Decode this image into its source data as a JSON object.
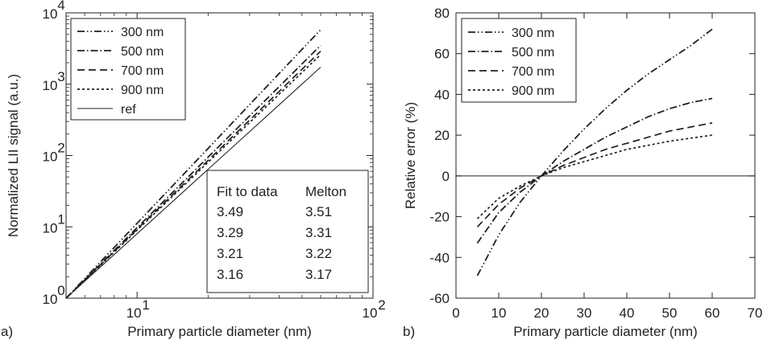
{
  "chart_data": [
    {
      "panel_label": "a)",
      "type": "line",
      "xscale": "log",
      "yscale": "log",
      "xlabel": "Primary particle diameter (nm)",
      "ylabel": "Normalized LII signal (a.u.)",
      "xlim": [
        5,
        100
      ],
      "ylim": [
        1,
        10000
      ],
      "xticks": [
        {
          "base": "10",
          "exp": "1",
          "value": 10
        },
        {
          "base": "10",
          "exp": "2",
          "value": 100
        }
      ],
      "yticks": [
        {
          "base": "10",
          "exp": "0",
          "value": 1
        },
        {
          "base": "10",
          "exp": "1",
          "value": 10
        },
        {
          "base": "10",
          "exp": "2",
          "value": 100
        },
        {
          "base": "10",
          "exp": "3",
          "value": 1000
        },
        {
          "base": "10",
          "exp": "4",
          "value": 10000
        }
      ],
      "legend_position": "top-left",
      "series": [
        {
          "name": "300 nm",
          "style": "dash-dot-dot",
          "x": [
            5,
            60
          ],
          "y": [
            1,
            5800
          ]
        },
        {
          "name": "500 nm",
          "style": "dash-dot",
          "x": [
            5,
            60
          ],
          "y": [
            1,
            3500
          ]
        },
        {
          "name": "700 nm",
          "style": "dash",
          "x": [
            5,
            60
          ],
          "y": [
            1,
            2900
          ]
        },
        {
          "name": "900 nm",
          "style": "dot",
          "x": [
            5,
            60
          ],
          "y": [
            1,
            2600
          ]
        },
        {
          "name": "ref",
          "style": "solid",
          "x": [
            5,
            60
          ],
          "y": [
            1,
            1730
          ]
        }
      ],
      "table": {
        "headers": [
          "Fit to data",
          "Melton"
        ],
        "rows": [
          [
            "3.49",
            "3.51"
          ],
          [
            "3.29",
            "3.31"
          ],
          [
            "3.21",
            "3.22"
          ],
          [
            "3.16",
            "3.17"
          ]
        ]
      }
    },
    {
      "panel_label": "b)",
      "type": "line",
      "xlabel": "Primary particle diameter (nm)",
      "ylabel": "Relative error (%)",
      "xlim": [
        0,
        70
      ],
      "ylim": [
        -60,
        80
      ],
      "xticks": [
        "0",
        "10",
        "20",
        "30",
        "40",
        "50",
        "60",
        "70"
      ],
      "yticks": [
        "-60",
        "-40",
        "-20",
        "0",
        "20",
        "40",
        "60",
        "80"
      ],
      "legend_position": "top-left",
      "reference_line": 0,
      "series": [
        {
          "name": "300 nm",
          "style": "dash-dot-dot",
          "x": [
            5,
            10,
            15,
            20,
            25,
            30,
            35,
            40,
            45,
            50,
            55,
            60
          ],
          "y": [
            -49,
            -29,
            -13,
            0,
            12,
            23,
            33,
            42,
            50,
            57,
            64,
            72
          ]
        },
        {
          "name": "500 nm",
          "style": "dash-dot",
          "x": [
            5,
            10,
            15,
            20,
            25,
            30,
            35,
            40,
            45,
            50,
            55,
            60
          ],
          "y": [
            -33,
            -18,
            -8,
            0,
            7,
            13,
            19,
            24,
            29,
            33,
            36,
            38
          ]
        },
        {
          "name": "700 nm",
          "style": "dash",
          "x": [
            5,
            10,
            15,
            20,
            25,
            30,
            35,
            40,
            45,
            50,
            55,
            60
          ],
          "y": [
            -25,
            -14,
            -6,
            0,
            5,
            9,
            13,
            16,
            19,
            22,
            24,
            26
          ]
        },
        {
          "name": "900 nm",
          "style": "dot",
          "x": [
            5,
            10,
            15,
            20,
            25,
            30,
            35,
            40,
            45,
            50,
            55,
            60
          ],
          "y": [
            -21,
            -11,
            -5,
            0,
            4,
            7,
            10,
            13,
            15,
            17,
            18.5,
            20
          ]
        }
      ]
    }
  ]
}
